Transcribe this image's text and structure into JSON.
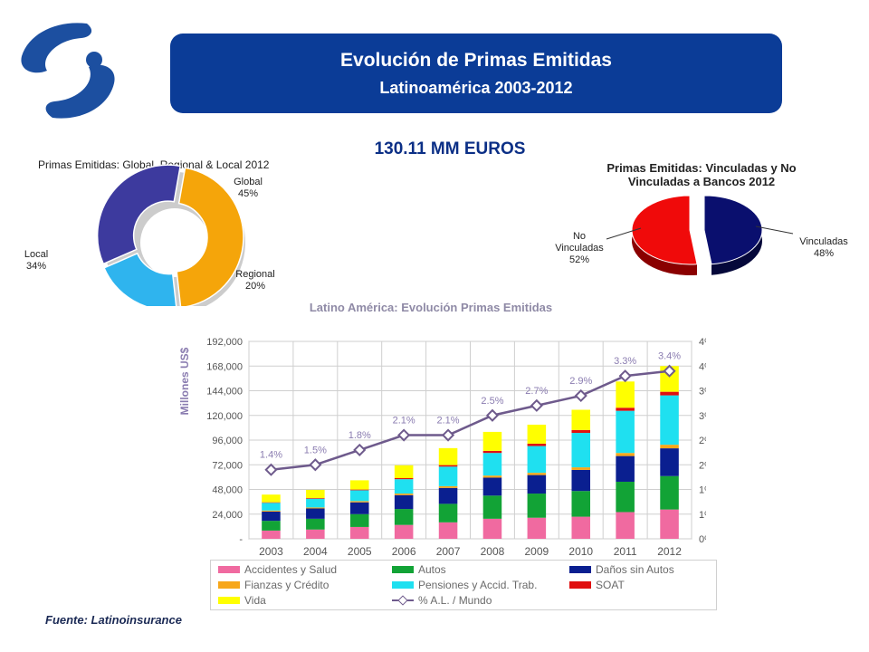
{
  "header": {
    "title": "Evolución de Primas Emitidas",
    "subtitle": "Latinoamérica 2003-2012",
    "total": "130.11 MM EUROS",
    "source": "Fuente: Latinoinsurance"
  },
  "colors": {
    "banner": "#0b3c97",
    "logo": "#1c4fa0"
  },
  "chart_data": [
    {
      "type": "pie",
      "variant": "donut",
      "title": "Primas Emitidas: Global, Regional & Local 2012",
      "slices": [
        {
          "label": "Global",
          "value": 45,
          "display": "45%",
          "color": "#f5a50a"
        },
        {
          "label": "Regional",
          "value": 20,
          "display": "20%",
          "color": "#2fb4ee"
        },
        {
          "label": "Local",
          "value": 34,
          "display": "34%",
          "color": "#3d3a9e"
        }
      ]
    },
    {
      "type": "pie",
      "title_line1": "Primas Emitidas: Vinculadas y No",
      "title_line2": "Vinculadas a Bancos 2012",
      "slices": [
        {
          "label": "No",
          "label2": "Vinculadas",
          "value": 52,
          "display": "52%",
          "color": "#f00a0a"
        },
        {
          "label": "Vinculadas",
          "label2": "",
          "value": 48,
          "display": "48%",
          "color": "#0a0f6e"
        }
      ]
    },
    {
      "type": "bar",
      "stacked": true,
      "title": "Latino América: Evolución Primas Emitidas",
      "ylabel": "Millones US$",
      "ylim": [
        0,
        192000
      ],
      "yticks": [
        "-",
        "24,000",
        "48,000",
        "72,000",
        "96,000",
        "120,000",
        "144,000",
        "168,000",
        "192,000"
      ],
      "y2ticks": [
        "0%",
        "1%",
        "1%",
        "2%",
        "2%",
        "3%",
        "3%",
        "4%",
        "4%"
      ],
      "y2lim": [
        0,
        4
      ],
      "grid": true,
      "categories": [
        "2003",
        "2004",
        "2005",
        "2006",
        "2007",
        "2008",
        "2009",
        "2010",
        "2011",
        "2012"
      ],
      "series": [
        {
          "name": "Accidentes y Salud",
          "color": "#f06aa0",
          "values": [
            8000,
            9000,
            11500,
            13500,
            16000,
            19500,
            20500,
            21500,
            26000,
            28500
          ]
        },
        {
          "name": "Autos",
          "color": "#12a336",
          "values": [
            9500,
            10500,
            12500,
            15500,
            18000,
            22500,
            23500,
            25000,
            29500,
            32500
          ]
        },
        {
          "name": "Daños sin Autos",
          "color": "#0a1f90",
          "values": [
            9000,
            10000,
            11500,
            13500,
            15500,
            17500,
            18000,
            20500,
            25000,
            27000
          ]
        },
        {
          "name": "Fianzas y Crédito",
          "color": "#f7a71a",
          "values": [
            1000,
            1000,
            1200,
            1500,
            1700,
            2000,
            2200,
            2500,
            3000,
            3500
          ]
        },
        {
          "name": "Pensiones y Accid. Trab.",
          "color": "#1fe0f0",
          "values": [
            7500,
            8500,
            10500,
            14000,
            19000,
            22000,
            26000,
            33500,
            41000,
            48000
          ]
        },
        {
          "name": "SOAT",
          "color": "#e01010",
          "values": [
            500,
            600,
            700,
            1000,
            1500,
            2000,
            2300,
            2800,
            3000,
            3500
          ]
        },
        {
          "name": "Vida",
          "color": "#ffff00",
          "values": [
            7500,
            8000,
            9000,
            12500,
            16500,
            18500,
            18500,
            19700,
            25500,
            25000
          ]
        }
      ],
      "line": {
        "name": "% A.L. / Mundo",
        "color": "#6e5a8c",
        "values": [
          1.4,
          1.5,
          1.8,
          2.1,
          2.1,
          2.5,
          2.7,
          2.9,
          3.3,
          3.4
        ],
        "labels": [
          "1.4%",
          "1.5%",
          "1.8%",
          "2.1%",
          "2.1%",
          "2.5%",
          "2.7%",
          "2.9%",
          "3.3%",
          "3.4%"
        ]
      }
    }
  ]
}
